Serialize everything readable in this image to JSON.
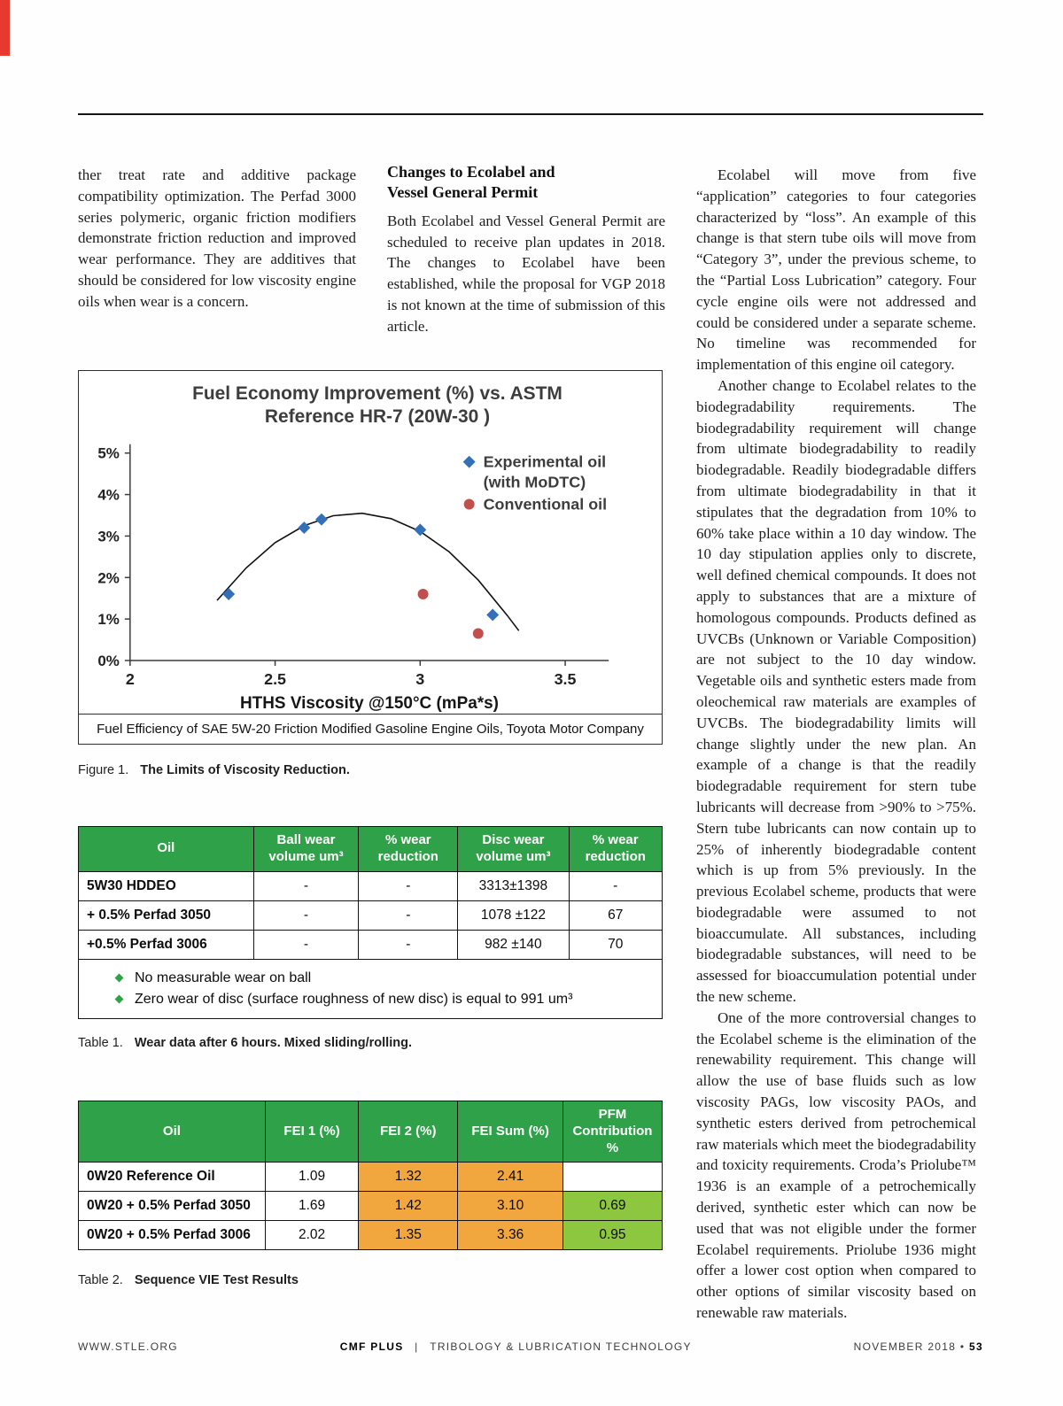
{
  "colors": {
    "header_green": "#2FA148",
    "cell_orange": "#F2A73E",
    "cell_green": "#8DC63F",
    "accent_red": "#E8392E",
    "marker_blue": "#3470B8",
    "marker_red": "#C0504D"
  },
  "columns": {
    "left": {
      "paragraph": "ther treat rate and additive package compatibility optimization.  The Perfad 3000 series polymeric, organic friction modifiers demonstrate friction reduction and improved wear performance.  They are additives that should be considered for low viscosity engine oils when wear is a concern."
    },
    "middle": {
      "heading": "Changes to Ecolabel and\nVessel General Permit",
      "paragraph": "Both Ecolabel and Vessel General Permit are scheduled to receive plan updates in 2018. The changes to Ecolabel have been established, while the proposal for VGP 2018 is not known at the time of submission of this article."
    },
    "right": {
      "paragraphs": [
        "Ecolabel will move from five “application” categories to four categories characterized by “loss”. An example of this change is that stern tube oils will move from “Category 3”, under the previous scheme, to the “Partial Loss Lubrication” category. Four cycle engine oils were not addressed and could be considered under a separate scheme. No timeline was recommended for implementation of this engine oil category.",
        "Another change to Ecolabel relates to the biodegradability requirements. The biodegradability requirement will change from ultimate biodegradability to readily biodegradable. Readily biodegradable differs from ultimate biodegradability in that it stipulates that the degradation from 10% to 60% take place within a 10 day window. The 10 day stipulation applies only to discrete, well defined chemical compounds. It does not apply to substances that are a mixture of homologous compounds. Products defined as UVCBs (Unknown or Variable Composition) are not subject to the 10 day window. Vegetable oils and synthetic esters made from oleochemical raw materials are examples of UVCBs. The biodegradability limits will change slightly under the new plan. An example of a change is that the readily biodegradable requirement for stern tube lubricants will decrease from >90% to >75%. Stern tube lubricants can now contain up to 25% of inherently biodegradable content which is up from 5% previously.  In the previous Ecolabel scheme, products that were biodegradable were assumed to not bioaccumulate. All substances, including biodegradable substances, will need to be assessed for bioaccumulation potential under the new scheme.",
        "One of the more controversial changes to the Ecolabel scheme is the elimination of the renewability requirement. This change will allow the use of base fluids such as low viscosity PAGs, low viscosity PAOs, and synthetic esters derived from petrochemical raw materials which meet the biodegradability and toxicity requirements. Croda’s Priolube™ 1936 is an example of a petrochemically derived, synthetic ester which can now be used that was not eligible under the former Ecolabel requirements. Priolube 1936 might offer a lower cost option when compared to other options of similar viscosity based on renewable raw materials."
      ]
    }
  },
  "chart_data": {
    "type": "scatter",
    "title": "Fuel Economy Improvement (%) vs. ASTM Reference HR-7 (20W-30 )",
    "title_lines": [
      "Fuel Economy Improvement (%) vs. ASTM",
      "Reference HR-7 (20W-30 )"
    ],
    "xlabel": "HTHS Viscosity @150°C (mPa*s)",
    "ylabel": "Fuel Economy Improvement (%)",
    "xlim": [
      2,
      3.65
    ],
    "ylim": [
      0,
      5
    ],
    "x_ticks": [
      2,
      2.5,
      3,
      3.5
    ],
    "x_tick_labels": [
      "2",
      "2.5",
      "3",
      "3.5"
    ],
    "y_ticks": [
      0,
      1,
      2,
      3,
      4,
      5
    ],
    "y_tick_labels": [
      "0%",
      "1%",
      "2%",
      "3%",
      "4%",
      "5%"
    ],
    "grid": false,
    "legend_position": "top-right",
    "series": [
      {
        "name": "Experimental oil (with MoDTC)",
        "legend_lines": [
          "Experimental oil",
          "(with MoDTC)"
        ],
        "marker": "diamond",
        "color": "#3470B8",
        "points": [
          [
            2.34,
            1.6
          ],
          [
            2.6,
            3.2
          ],
          [
            2.66,
            3.4
          ],
          [
            3.0,
            3.15
          ],
          [
            3.25,
            1.1
          ]
        ]
      },
      {
        "name": "Conventional oil",
        "legend_lines": [
          "Conventional oil"
        ],
        "marker": "circle",
        "color": "#C0504D",
        "points": [
          [
            3.01,
            1.6
          ],
          [
            3.2,
            0.65
          ]
        ]
      }
    ],
    "trend_curve": {
      "color": "#111111",
      "points": [
        [
          2.3,
          1.45
        ],
        [
          2.4,
          2.23
        ],
        [
          2.5,
          2.84
        ],
        [
          2.6,
          3.25
        ],
        [
          2.7,
          3.49
        ],
        [
          2.8,
          3.55
        ],
        [
          2.9,
          3.42
        ],
        [
          3.0,
          3.11
        ],
        [
          3.1,
          2.62
        ],
        [
          3.2,
          1.94
        ],
        [
          3.3,
          1.09
        ],
        [
          3.34,
          0.72
        ]
      ]
    },
    "source_note": "Fuel Efficiency of SAE 5W-20 Friction Modified Gasoline Engine Oils, Toyota Motor Company"
  },
  "figure": {
    "caption_label": "Figure 1.",
    "caption_text": "The Limits of Viscosity Reduction."
  },
  "table1": {
    "headers": [
      "Oil",
      "Ball wear\nvolume um³",
      "% wear\nreduction",
      "Disc wear\nvolume um³",
      "% wear\nreduction"
    ],
    "col_widths": [
      "30%",
      "18%",
      "17%",
      "19%",
      "16%"
    ],
    "rows": [
      {
        "cells": [
          "5W30 HDDEO",
          "-",
          "-",
          "3313±1398",
          "-"
        ]
      },
      {
        "cells": [
          "+ 0.5% Perfad 3050",
          "-",
          "-",
          "1078 ±122",
          "67"
        ]
      },
      {
        "cells": [
          "+0.5% Perfad 3006",
          "-",
          "-",
          "982 ±140",
          "70"
        ]
      }
    ],
    "notes": [
      "No measurable wear on ball",
      "Zero wear of disc (surface roughness of new disc) is equal to 991 um³"
    ],
    "caption_label": "Table 1.",
    "caption_text": "Wear data after 6 hours. Mixed sliding/rolling."
  },
  "table2": {
    "headers": [
      "Oil",
      "FEI 1 (%)",
      "FEI 2 (%)",
      "FEI Sum (%)",
      "PFM\nContribution\n%"
    ],
    "col_widths": [
      "32%",
      "16%",
      "17%",
      "18%",
      "17%"
    ],
    "rows": [
      {
        "cells": [
          "0W20 Reference Oil",
          "1.09",
          "1.32",
          "2.41",
          ""
        ],
        "cell_colors": [
          "plain",
          "plain",
          "orange",
          "orange",
          "plain"
        ]
      },
      {
        "cells": [
          "0W20 + 0.5% Perfad 3050",
          "1.69",
          "1.42",
          "3.10",
          "0.69"
        ],
        "cell_colors": [
          "plain",
          "plain",
          "orange",
          "orange",
          "green"
        ]
      },
      {
        "cells": [
          "0W20 + 0.5% Perfad 3006",
          "2.02",
          "1.35",
          "3.36",
          "0.95"
        ],
        "cell_colors": [
          "plain",
          "plain",
          "orange",
          "orange",
          "green"
        ]
      }
    ],
    "caption_label": "Table 2.",
    "caption_text": "Sequence VIE Test Results"
  },
  "footer": {
    "left": "WWW.STLE.ORG",
    "center_brand": "CMF PLUS",
    "center_sep": "|",
    "center_title": "TRIBOLOGY & LUBRICATION TECHNOLOGY",
    "right_date": "NOVEMBER 2018",
    "right_sep": "•",
    "right_page": "53"
  }
}
